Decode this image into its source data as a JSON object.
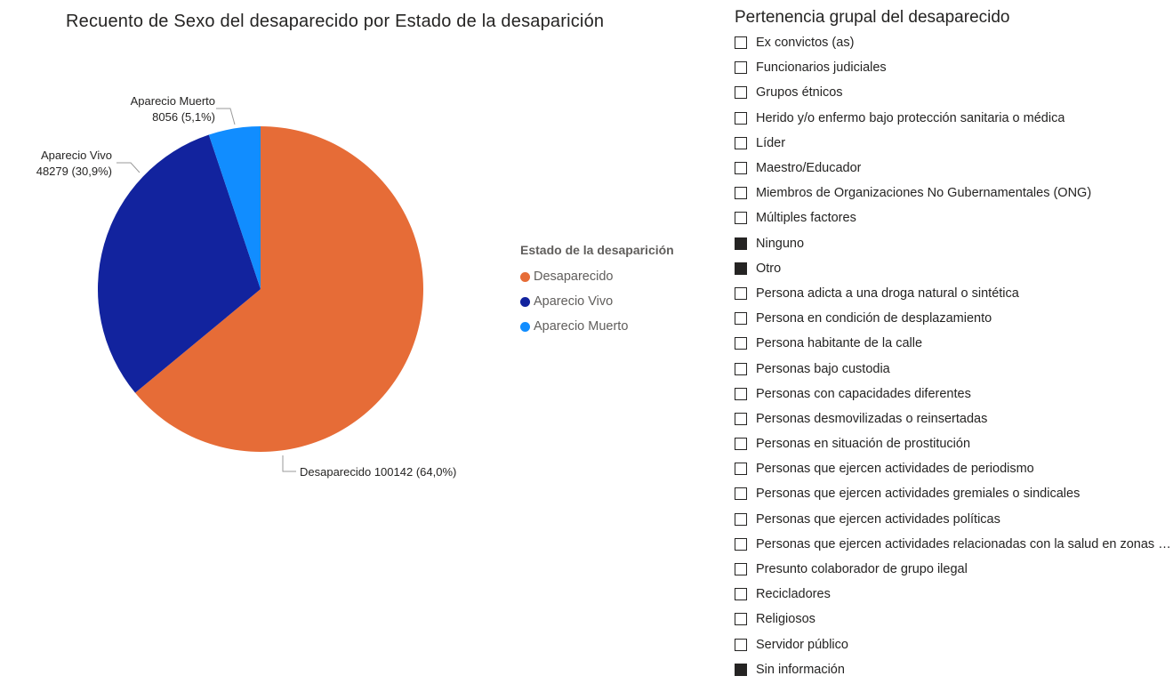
{
  "pie_chart": {
    "title": "Recuento de Sexo del desaparecido por Estado de la desaparición",
    "legend_title": "Estado de la desaparición"
  },
  "chart_data": {
    "type": "pie",
    "title": "Recuento de Sexo del desaparecido por Estado de la desaparición",
    "legend_title": "Estado de la desaparición",
    "legend_position": "right",
    "slices": [
      {
        "label": "Desaparecido",
        "value": 100142,
        "percent_label": "64,0%",
        "color": "#E66C37"
      },
      {
        "label": "Aparecio Vivo",
        "value": 48279,
        "percent_label": "30,9%",
        "color": "#12239E"
      },
      {
        "label": "Aparecio Muerto",
        "value": 8056,
        "percent_label": "5,1%",
        "color": "#118DFF"
      }
    ],
    "data_labels": [
      "Desaparecido 100142 (64,0%)",
      [
        "Aparecio Vivo",
        "48279 (30,9%)"
      ],
      [
        "Aparecio Muerto",
        "8056 (5,1%)"
      ]
    ]
  },
  "slicer": {
    "title": "Pertenencia grupal del desaparecido",
    "items": [
      {
        "label": "Ex convictos (as)",
        "checked": false
      },
      {
        "label": "Funcionarios judiciales",
        "checked": false
      },
      {
        "label": "Grupos étnicos",
        "checked": false
      },
      {
        "label": "Herido y/o enfermo bajo protección sanitaria o médica",
        "checked": false
      },
      {
        "label": "Líder",
        "checked": false
      },
      {
        "label": "Maestro/Educador",
        "checked": false
      },
      {
        "label": "Miembros de Organizaciones No Gubernamentales (ONG)",
        "checked": false
      },
      {
        "label": "Múltiples factores",
        "checked": false
      },
      {
        "label": "Ninguno",
        "checked": true
      },
      {
        "label": "Otro",
        "checked": true
      },
      {
        "label": "Persona adicta a una droga natural o sintética",
        "checked": false
      },
      {
        "label": "Persona en condición de desplazamiento",
        "checked": false
      },
      {
        "label": "Persona habitante de la calle",
        "checked": false
      },
      {
        "label": "Personas bajo custodia",
        "checked": false
      },
      {
        "label": "Personas con capacidades diferentes",
        "checked": false
      },
      {
        "label": "Personas desmovilizadas o reinsertadas",
        "checked": false
      },
      {
        "label": "Personas en situación de prostitución",
        "checked": false
      },
      {
        "label": "Personas que ejercen actividades de periodismo",
        "checked": false
      },
      {
        "label": "Personas que ejercen actividades gremiales o sindicales",
        "checked": false
      },
      {
        "label": "Personas que ejercen actividades políticas",
        "checked": false
      },
      {
        "label": "Personas que ejercen actividades relacionadas con la salud en zonas d...",
        "checked": false
      },
      {
        "label": "Presunto colaborador de grupo ilegal",
        "checked": false
      },
      {
        "label": "Recicladores",
        "checked": false
      },
      {
        "label": "Religiosos",
        "checked": false
      },
      {
        "label": "Servidor público",
        "checked": false
      },
      {
        "label": "Sin información",
        "checked": true
      }
    ]
  }
}
